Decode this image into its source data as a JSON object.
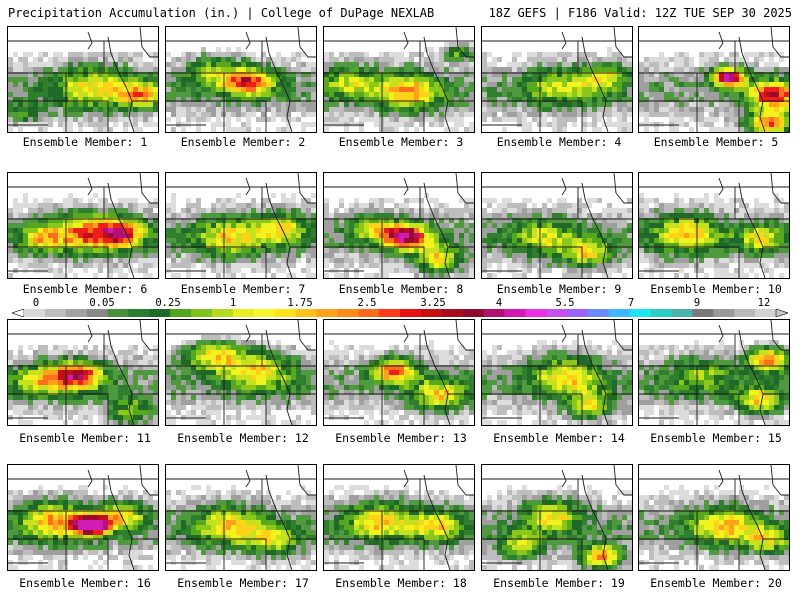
{
  "header": {
    "left": "Precipitation Accumulation (in.) | College of DuPage NEXLAB",
    "right": "18Z GEFS | F186 Valid: 12Z TUE SEP 30 2025"
  },
  "members": [
    {
      "label": "Ensemble Member: 1"
    },
    {
      "label": "Ensemble Member: 2"
    },
    {
      "label": "Ensemble Member: 3"
    },
    {
      "label": "Ensemble Member: 4"
    },
    {
      "label": "Ensemble Member: 5"
    },
    {
      "label": "Ensemble Member: 6"
    },
    {
      "label": "Ensemble Member: 7"
    },
    {
      "label": "Ensemble Member: 8"
    },
    {
      "label": "Ensemble Member: 9"
    },
    {
      "label": "Ensemble Member: 10"
    },
    {
      "label": "Ensemble Member: 11"
    },
    {
      "label": "Ensemble Member: 12"
    },
    {
      "label": "Ensemble Member: 13"
    },
    {
      "label": "Ensemble Member: 14"
    },
    {
      "label": "Ensemble Member: 15"
    },
    {
      "label": "Ensemble Member: 16"
    },
    {
      "label": "Ensemble Member: 17"
    },
    {
      "label": "Ensemble Member: 18"
    },
    {
      "label": "Ensemble Member: 19"
    },
    {
      "label": "Ensemble Member: 20"
    }
  ],
  "colorbar": {
    "tick_labels": [
      "0",
      "0.05",
      "0.25",
      "1",
      "1.75",
      "2.5",
      "3.25",
      "4",
      "5.5",
      "7",
      "9",
      "12"
    ],
    "colors": [
      "#d8d8d8",
      "#bdbdbd",
      "#a3a3a3",
      "#8a8a8a",
      "#4a8f3c",
      "#2e7d2e",
      "#1e6b28",
      "#52a51e",
      "#7fc31c",
      "#b4dc1e",
      "#e6ef1e",
      "#f7f72a",
      "#ffe21a",
      "#ffc21a",
      "#ffa31a",
      "#ff8a1a",
      "#ff6a1a",
      "#ff3a1a",
      "#e81414",
      "#c80f0f",
      "#a80d1e",
      "#8c0a2e",
      "#b0106e",
      "#d219b4",
      "#ea30e6",
      "#c84ef0",
      "#9a63ff",
      "#6a8cff",
      "#3fb7ff",
      "#1ee6f0",
      "#2acfc8",
      "#4ab3ae",
      "#7a7a7a",
      "#9a9a9a",
      "#b9b9b9",
      "#d2d2d2"
    ]
  }
}
